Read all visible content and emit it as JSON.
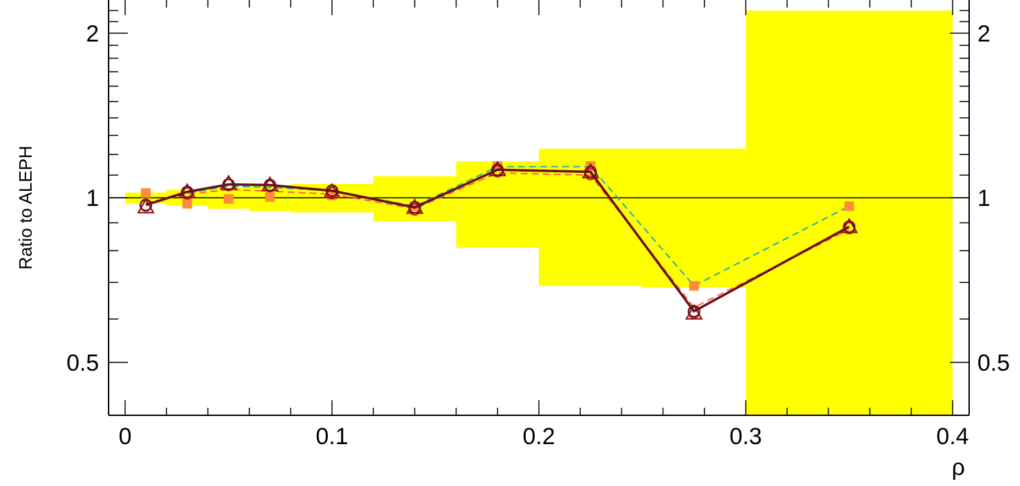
{
  "chart_data": {
    "type": "line",
    "title": "",
    "xlabel": "ρ",
    "ylabel": "Ratio to ALEPH",
    "xlim": [
      -0.008,
      0.408
    ],
    "ylim": [
      0.4,
      2.3
    ],
    "yscale": "log",
    "reference_line": 1,
    "x_ticks": [
      {
        "value": 0,
        "label": "0"
      },
      {
        "value": 0.1,
        "label": "0.1"
      },
      {
        "value": 0.2,
        "label": "0.2"
      },
      {
        "value": 0.3,
        "label": "0.3"
      },
      {
        "value": 0.4,
        "label": "0.4"
      }
    ],
    "y_ticks": [
      {
        "value": 0.5,
        "label": "0.5"
      },
      {
        "value": 1,
        "label": "1"
      },
      {
        "value": 2,
        "label": "2"
      }
    ],
    "uncertainty_band": {
      "color": "#ffff00",
      "bins": [
        {
          "x0": 0.0,
          "x1": 0.02,
          "lo": 0.976,
          "hi": 1.022
        },
        {
          "x0": 0.02,
          "x1": 0.04,
          "lo": 0.967,
          "hi": 1.033
        },
        {
          "x0": 0.04,
          "x1": 0.06,
          "lo": 0.955,
          "hi": 1.045
        },
        {
          "x0": 0.06,
          "x1": 0.08,
          "lo": 0.945,
          "hi": 1.055
        },
        {
          "x0": 0.08,
          "x1": 0.12,
          "lo": 0.94,
          "hi": 1.06
        },
        {
          "x0": 0.12,
          "x1": 0.16,
          "lo": 0.905,
          "hi": 1.095
        },
        {
          "x0": 0.16,
          "x1": 0.2,
          "lo": 0.81,
          "hi": 1.165
        },
        {
          "x0": 0.2,
          "x1": 0.25,
          "lo": 0.69,
          "hi": 1.23
        },
        {
          "x0": 0.25,
          "x1": 0.3,
          "lo": 0.685,
          "hi": 1.23
        },
        {
          "x0": 0.3,
          "x1": 0.4,
          "lo": 0.4,
          "hi": 2.2
        }
      ]
    },
    "x": [
      0.01,
      0.03,
      0.05,
      0.07,
      0.1,
      0.14,
      0.18,
      0.225,
      0.275,
      0.35
    ],
    "series": [
      {
        "color": "#20b2aa",
        "dash": "10,6",
        "marker": "none",
        "values": [
          0.972,
          1.02,
          1.05,
          1.045,
          1.03,
          0.965,
          1.14,
          1.14,
          0.69,
          0.965
        ]
      },
      {
        "color": "#ff6347",
        "dash": "10,6",
        "marker": "none",
        "values": [
          0.978,
          1.015,
          1.035,
          1.028,
          1.015,
          0.955,
          1.11,
          1.1,
          0.63,
          0.875
        ]
      },
      {
        "color": "#ff8c3a",
        "dash": "none",
        "marker": "filled-square",
        "values": [
          1.02,
          0.975,
          0.995,
          1.003,
          1.01,
          0.965,
          1.143,
          1.143,
          0.69,
          0.965
        ]
      },
      {
        "color": "#dc143c",
        "dash": "none",
        "marker": "open-circle",
        "values": [
          0.968,
          1.018,
          1.055,
          1.05,
          1.02,
          0.952,
          1.118,
          1.105,
          0.617,
          0.88
        ]
      },
      {
        "color": "#8b1a1a",
        "dash": "none",
        "marker": "open-triangle",
        "values": [
          0.962,
          1.025,
          1.062,
          1.055,
          1.025,
          0.96,
          1.125,
          1.115,
          0.615,
          0.885
        ]
      },
      {
        "color": "#6b0f1a",
        "dash": "none",
        "marker": "open-circle",
        "line": "solid",
        "values": [
          0.97,
          1.025,
          1.058,
          1.055,
          1.03,
          0.96,
          1.125,
          1.115,
          0.62,
          0.885
        ]
      }
    ]
  }
}
